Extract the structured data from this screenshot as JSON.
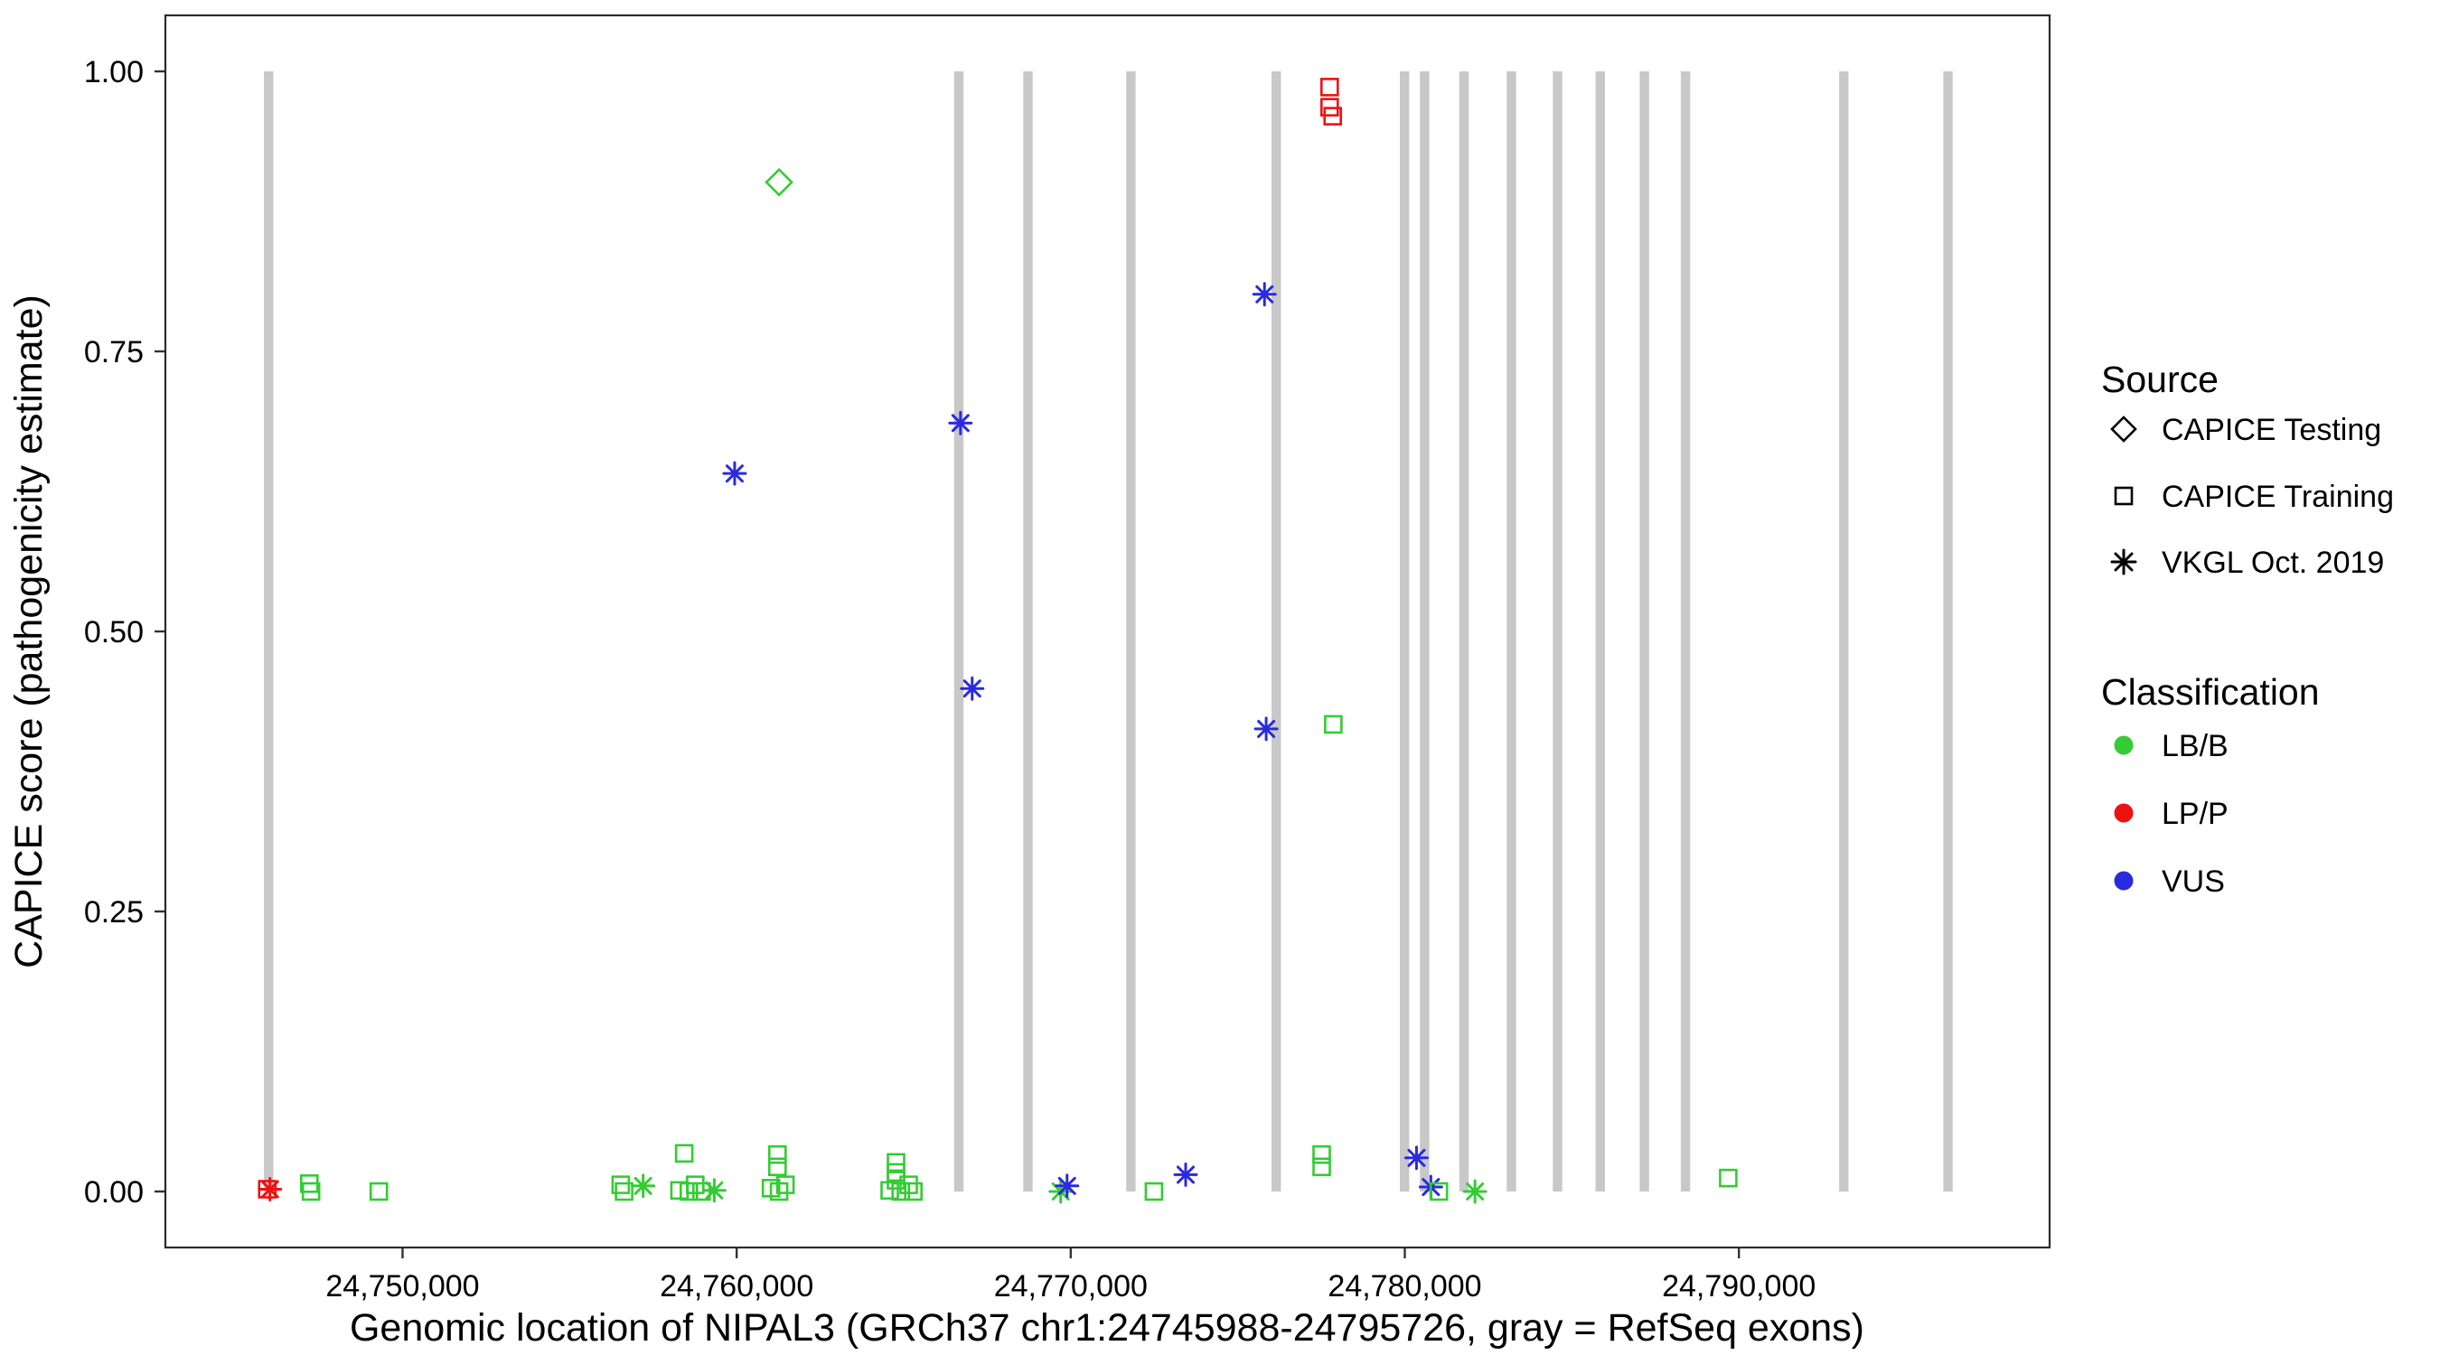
{
  "figure": {
    "background": "#FFFFFF"
  },
  "chart_data": {
    "type": "scatter",
    "title": "",
    "xlabel": "Genomic location of NIPAL3 (GRCh37 chr1:24745988-24795726, gray = RefSeq exons)",
    "ylabel": "CAPICE score (pathogenicity estimate)",
    "xlim": [
      24742900,
      24799300
    ],
    "ylim": [
      -0.05,
      1.05
    ],
    "grid": "off",
    "legend_position": "right",
    "x_ticks": [
      {
        "value": 24750000,
        "label": "24,750,000"
      },
      {
        "value": 24760000,
        "label": "24,760,000"
      },
      {
        "value": 24770000,
        "label": "24,770,000"
      },
      {
        "value": 24780000,
        "label": "24,780,000"
      },
      {
        "value": 24790000,
        "label": "24,790,000"
      }
    ],
    "y_ticks": [
      {
        "value": 0.0,
        "label": "0.00"
      },
      {
        "value": 0.25,
        "label": "0.25"
      },
      {
        "value": 0.5,
        "label": "0.50"
      },
      {
        "value": 0.75,
        "label": "0.75"
      },
      {
        "value": 1.0,
        "label": "1.00"
      }
    ],
    "exons": {
      "label": "RefSeq exons",
      "color": "#C8C8C8",
      "width_bp": 280,
      "y_span": [
        0,
        1
      ],
      "positions": [
        24745990,
        24766650,
        24768720,
        24771800,
        24776150,
        24779990,
        24780590,
        24781770,
        24783190,
        24784570,
        24785850,
        24787170,
        24788400,
        24793140,
        24796260
      ]
    },
    "colors": {
      "LB/B": "#33CC33",
      "LP/P": "#EE1111",
      "VUS": "#2A2ADF",
      "legend_shape": "#000000",
      "axis_text": "#1A1A1A",
      "panel_border": "#2B2B2B"
    },
    "shape_by_source": {
      "CAPICE Testing": "diamond",
      "CAPICE Training": "square",
      "VKGL Oct. 2019": "asterisk"
    },
    "points": [
      {
        "x": 24745950,
        "y": 0.002,
        "source": "CAPICE Training",
        "classification": "LP/P"
      },
      {
        "x": 24746030,
        "y": 0.002,
        "source": "VKGL Oct. 2019",
        "classification": "LP/P"
      },
      {
        "x": 24747210,
        "y": 0.007,
        "source": "CAPICE Training",
        "classification": "LB/B"
      },
      {
        "x": 24747260,
        "y": 0.0,
        "source": "CAPICE Training",
        "classification": "LB/B"
      },
      {
        "x": 24749290,
        "y": 0.0,
        "source": "CAPICE Training",
        "classification": "LB/B"
      },
      {
        "x": 24756530,
        "y": 0.006,
        "source": "CAPICE Training",
        "classification": "LB/B"
      },
      {
        "x": 24756630,
        "y": 0.0,
        "source": "CAPICE Training",
        "classification": "LB/B"
      },
      {
        "x": 24757200,
        "y": 0.005,
        "source": "VKGL Oct. 2019",
        "classification": "LB/B"
      },
      {
        "x": 24758290,
        "y": 0.001,
        "source": "CAPICE Training",
        "classification": "LB/B"
      },
      {
        "x": 24758430,
        "y": 0.034,
        "source": "CAPICE Training",
        "classification": "LB/B"
      },
      {
        "x": 24758570,
        "y": 0.0,
        "source": "CAPICE Training",
        "classification": "LB/B"
      },
      {
        "x": 24758760,
        "y": 0.006,
        "source": "CAPICE Training",
        "classification": "LB/B"
      },
      {
        "x": 24758950,
        "y": 0.0,
        "source": "CAPICE Training",
        "classification": "LB/B"
      },
      {
        "x": 24759330,
        "y": 0.001,
        "source": "VKGL Oct. 2019",
        "classification": "LB/B"
      },
      {
        "x": 24759940,
        "y": 0.641,
        "source": "VKGL Oct. 2019",
        "classification": "VUS"
      },
      {
        "x": 24761030,
        "y": 0.003,
        "source": "CAPICE Training",
        "classification": "LB/B"
      },
      {
        "x": 24761220,
        "y": 0.033,
        "source": "CAPICE Training",
        "classification": "LB/B"
      },
      {
        "x": 24761220,
        "y": 0.022,
        "source": "CAPICE Training",
        "classification": "LB/B"
      },
      {
        "x": 24761270,
        "y": 0.901,
        "source": "CAPICE Testing",
        "classification": "LB/B"
      },
      {
        "x": 24761270,
        "y": 0.0,
        "source": "CAPICE Training",
        "classification": "LB/B"
      },
      {
        "x": 24761460,
        "y": 0.006,
        "source": "CAPICE Training",
        "classification": "LB/B"
      },
      {
        "x": 24764580,
        "y": 0.001,
        "source": "CAPICE Training",
        "classification": "LB/B"
      },
      {
        "x": 24764770,
        "y": 0.026,
        "source": "CAPICE Training",
        "classification": "LB/B"
      },
      {
        "x": 24764770,
        "y": 0.017,
        "source": "CAPICE Training",
        "classification": "LB/B"
      },
      {
        "x": 24764770,
        "y": 0.01,
        "source": "CAPICE Training",
        "classification": "LB/B"
      },
      {
        "x": 24764910,
        "y": 0.0,
        "source": "CAPICE Training",
        "classification": "LB/B"
      },
      {
        "x": 24765150,
        "y": 0.006,
        "source": "CAPICE Training",
        "classification": "LB/B"
      },
      {
        "x": 24765290,
        "y": 0.0,
        "source": "CAPICE Training",
        "classification": "LB/B"
      },
      {
        "x": 24766700,
        "y": 0.686,
        "source": "VKGL Oct. 2019",
        "classification": "VUS"
      },
      {
        "x": 24767050,
        "y": 0.449,
        "source": "VKGL Oct. 2019",
        "classification": "VUS"
      },
      {
        "x": 24769700,
        "y": 0.0,
        "source": "VKGL Oct. 2019",
        "classification": "LB/B"
      },
      {
        "x": 24769890,
        "y": 0.005,
        "source": "VKGL Oct. 2019",
        "classification": "VUS"
      },
      {
        "x": 24772490,
        "y": 0.0,
        "source": "CAPICE Training",
        "classification": "LB/B"
      },
      {
        "x": 24773440,
        "y": 0.015,
        "source": "VKGL Oct. 2019",
        "classification": "VUS"
      },
      {
        "x": 24775800,
        "y": 0.801,
        "source": "VKGL Oct. 2019",
        "classification": "VUS"
      },
      {
        "x": 24775850,
        "y": 0.413,
        "source": "VKGL Oct. 2019",
        "classification": "VUS"
      },
      {
        "x": 24777510,
        "y": 0.033,
        "source": "CAPICE Training",
        "classification": "LB/B"
      },
      {
        "x": 24777510,
        "y": 0.022,
        "source": "CAPICE Training",
        "classification": "LB/B"
      },
      {
        "x": 24777750,
        "y": 0.986,
        "source": "CAPICE Training",
        "classification": "LP/P"
      },
      {
        "x": 24777750,
        "y": 0.968,
        "source": "CAPICE Training",
        "classification": "LP/P"
      },
      {
        "x": 24777840,
        "y": 0.96,
        "source": "CAPICE Training",
        "classification": "LP/P"
      },
      {
        "x": 24777860,
        "y": 0.417,
        "source": "CAPICE Training",
        "classification": "LB/B"
      },
      {
        "x": 24780350,
        "y": 0.03,
        "source": "VKGL Oct. 2019",
        "classification": "VUS"
      },
      {
        "x": 24780780,
        "y": 0.004,
        "source": "VKGL Oct. 2019",
        "classification": "VUS"
      },
      {
        "x": 24781020,
        "y": 0.0,
        "source": "CAPICE Training",
        "classification": "LB/B"
      },
      {
        "x": 24782100,
        "y": 0.0,
        "source": "VKGL Oct. 2019",
        "classification": "LB/B"
      },
      {
        "x": 24789680,
        "y": 0.012,
        "source": "CAPICE Training",
        "classification": "LB/B"
      }
    ],
    "legend": {
      "source": {
        "title": "Source",
        "items": [
          {
            "label": "CAPICE Testing",
            "shape": "diamond"
          },
          {
            "label": "CAPICE Training",
            "shape": "square"
          },
          {
            "label": "VKGL Oct. 2019",
            "shape": "asterisk"
          }
        ]
      },
      "classification": {
        "title": "Classification",
        "items": [
          {
            "label": "LB/B",
            "color": "#33CC33"
          },
          {
            "label": "LP/P",
            "color": "#EE1111"
          },
          {
            "label": "VUS",
            "color": "#2A2ADF"
          }
        ]
      }
    }
  }
}
